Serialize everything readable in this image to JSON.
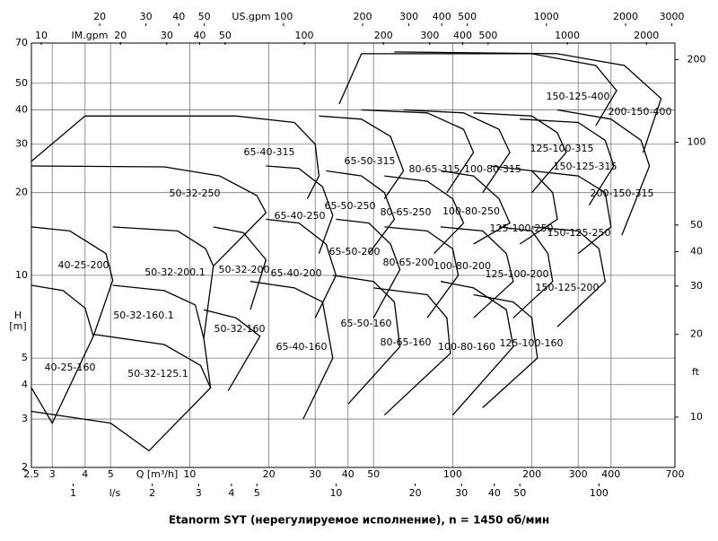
{
  "chart_data": {
    "type": "pump-chart",
    "title": "Etanorm SYT (нерегулируемое исполнение), n = 1450 об/мин",
    "xlabel": "Q [m³/h]",
    "ylabel": "H",
    "yunit": "[m]",
    "xscale": "log",
    "yscale": "log",
    "grid": true,
    "color": "#000000",
    "xlim": [
      2.5,
      700
    ],
    "xticks": [
      2.5,
      3,
      4,
      5,
      10,
      20,
      30,
      40,
      50,
      100,
      200,
      300,
      400,
      700
    ],
    "ylim": [
      2,
      70
    ],
    "yticks": [
      2,
      3,
      4,
      5,
      10,
      20,
      30,
      40,
      50,
      70
    ],
    "y2label": "ft",
    "y2lim": [
      6.56,
      229.7
    ],
    "y2ticks": [
      10,
      20,
      30,
      40,
      50,
      100,
      200
    ],
    "top_axes": [
      {
        "label": "US.gpm",
        "lim": [
          11.0,
          3082
        ],
        "ticks": [
          20,
          30,
          40,
          50,
          100,
          200,
          300,
          400,
          500,
          1000,
          2000,
          3000
        ]
      },
      {
        "label": "IM.gpm",
        "lim": [
          9.17,
          2566
        ],
        "ticks": [
          10,
          20,
          30,
          40,
          50,
          100,
          200,
          300,
          400,
          500,
          1000,
          2000
        ]
      }
    ],
    "bottom_axis2": {
      "label": "l/s",
      "lim": [
        0.694,
        194.4
      ],
      "ticks": [
        1,
        2,
        3,
        4,
        5,
        10,
        20,
        30,
        40,
        50,
        100
      ]
    },
    "series": [
      {
        "name": "40-25-160",
        "x": [
          2.5,
          3.3,
          4.0,
          4.3,
          3,
          2.5
        ],
        "values": [
          9.2,
          8.8,
          7.6,
          6.0,
          2.9,
          3.9
        ]
      },
      {
        "name": "40-25-200",
        "x": [
          2.5,
          3.5,
          4.8,
          5.1,
          4.3
        ],
        "values": [
          15,
          14.5,
          12,
          9.6,
          6.0
        ]
      },
      {
        "name": "50-32-160.1",
        "x": [
          5.1,
          8,
          10.5,
          11.3,
          12
        ],
        "values": [
          9.2,
          8.8,
          7.8,
          5.9,
          3.9
        ]
      },
      {
        "name": "50-32-125.1",
        "x": [
          4.3,
          8,
          11,
          12,
          7,
          5,
          2.5
        ],
        "values": [
          6.1,
          5.6,
          4.7,
          3.9,
          2.3,
          2.9,
          3.2
        ]
      },
      {
        "name": "50-32-200.1",
        "x": [
          5.1,
          9,
          11.5,
          12.3,
          11.3
        ],
        "values": [
          15,
          14.5,
          12.5,
          10.8,
          5.9
        ]
      },
      {
        "name": "50-32-250",
        "x": [
          2.5,
          8,
          13,
          18,
          19.5,
          12.3
        ],
        "values": [
          25,
          24.8,
          23,
          19.5,
          16.9,
          10.8
        ]
      },
      {
        "name": "50-32-200",
        "x": [
          12.3,
          16,
          19.5,
          17
        ],
        "values": [
          15,
          14.3,
          11.4,
          7.5
        ]
      },
      {
        "name": "50-32-160",
        "x": [
          11.3,
          15,
          18.5,
          14
        ],
        "values": [
          7.5,
          7,
          6.0,
          3.8
        ]
      },
      {
        "name": "65-40-315",
        "x": [
          2.5,
          4,
          15,
          25,
          30,
          31,
          28
        ],
        "values": [
          26,
          38,
          38,
          36,
          30,
          23,
          19
        ]
      },
      {
        "name": "65-40-250",
        "x": [
          19.5,
          26,
          32,
          35,
          31
        ],
        "values": [
          25,
          24.5,
          21,
          16.5,
          12
        ]
      },
      {
        "name": "65-40-200",
        "x": [
          19.5,
          26,
          33,
          36,
          30
        ],
        "values": [
          16,
          15.5,
          13,
          10,
          7
        ]
      },
      {
        "name": "65-40-160",
        "x": [
          17,
          25,
          32,
          35,
          27
        ],
        "values": [
          9.5,
          9,
          8,
          5,
          3.0
        ]
      },
      {
        "name": "65-50-315",
        "x": [
          31,
          45,
          58,
          65,
          55
        ],
        "values": [
          38,
          37,
          32,
          24,
          19
        ]
      },
      {
        "name": "65-50-250",
        "x": [
          33,
          45,
          55,
          60,
          48
        ],
        "values": [
          24,
          23,
          20,
          16,
          12
        ]
      },
      {
        "name": "65-50-200",
        "x": [
          36,
          48,
          58,
          63,
          50
        ],
        "values": [
          16,
          15.5,
          13,
          10.5,
          7
        ]
      },
      {
        "name": "65-50-160",
        "x": [
          35,
          50,
          60,
          63,
          40
        ],
        "values": [
          10,
          9.5,
          8,
          5.5,
          3.4
        ]
      },
      {
        "name": "80-65-315",
        "x": [
          45,
          80,
          110,
          120,
          95
        ],
        "values": [
          40,
          39,
          34,
          28,
          20
        ]
      },
      {
        "name": "80-65-250",
        "x": [
          55,
          80,
          100,
          110,
          85
        ],
        "values": [
          23,
          22,
          19,
          15.5,
          12
        ]
      },
      {
        "name": "80-65-200",
        "x": [
          55,
          80,
          100,
          105,
          80
        ],
        "values": [
          15,
          14.5,
          12.5,
          10,
          7
        ]
      },
      {
        "name": "80-65-160",
        "x": [
          50,
          80,
          95,
          98,
          55
        ],
        "values": [
          9,
          8.5,
          7,
          5.2,
          3.1
        ]
      },
      {
        "name": "100-80-315",
        "x": [
          65,
          110,
          150,
          165,
          130
        ],
        "values": [
          40,
          39,
          34,
          28,
          20
        ]
      },
      {
        "name": "100-80-250",
        "x": [
          90,
          120,
          150,
          165,
          120
        ],
        "values": [
          24,
          23,
          19,
          15.5,
          13
        ]
      },
      {
        "name": "100-80-200",
        "x": [
          90,
          130,
          160,
          170,
          120
        ],
        "values": [
          15,
          14.5,
          12,
          9.5,
          7
        ]
      },
      {
        "name": "100-80-160",
        "x": [
          90,
          120,
          160,
          170,
          100
        ],
        "values": [
          9.5,
          9,
          7.5,
          5.5,
          3.1
        ]
      },
      {
        "name": "125-100-315",
        "x": [
          120,
          200,
          250,
          270,
          200
        ],
        "values": [
          39,
          38,
          33,
          28,
          20
        ]
      },
      {
        "name": "125-100-250",
        "x": [
          140,
          200,
          240,
          250,
          180
        ],
        "values": [
          25,
          24,
          20,
          16,
          13
        ]
      },
      {
        "name": "125-100-200",
        "x": [
          150,
          200,
          230,
          240,
          170
        ],
        "values": [
          15,
          14.5,
          12,
          9.5,
          7
        ]
      },
      {
        "name": "125-100-160",
        "x": [
          120,
          170,
          200,
          210,
          130
        ],
        "values": [
          8.5,
          8,
          7,
          5,
          3.3
        ]
      },
      {
        "name": "150-125-400",
        "x": [
          37,
          45,
          200,
          350,
          420,
          350
        ],
        "values": [
          42,
          64,
          64,
          58,
          47,
          35
        ]
      },
      {
        "name": "200-150-400",
        "x": [
          60,
          250,
          450,
          620,
          530
        ],
        "values": [
          65,
          64,
          58,
          44,
          28
        ]
      },
      {
        "name": "150-125-315",
        "x": [
          180,
          300,
          380,
          410,
          330
        ],
        "values": [
          37,
          36,
          31,
          25,
          18
        ]
      },
      {
        "name": "200-150-315",
        "x": [
          250,
          400,
          520,
          560,
          440
        ],
        "values": [
          40,
          37,
          31,
          25,
          14
        ]
      },
      {
        "name": "150-125-250",
        "x": [
          200,
          300,
          380,
          400,
          300
        ],
        "values": [
          24,
          23,
          20,
          15,
          12
        ]
      },
      {
        "name": "150-125-200",
        "x": [
          200,
          300,
          360,
          380,
          250
        ],
        "values": [
          15,
          14.5,
          12.5,
          9.5,
          6.5
        ]
      }
    ]
  }
}
